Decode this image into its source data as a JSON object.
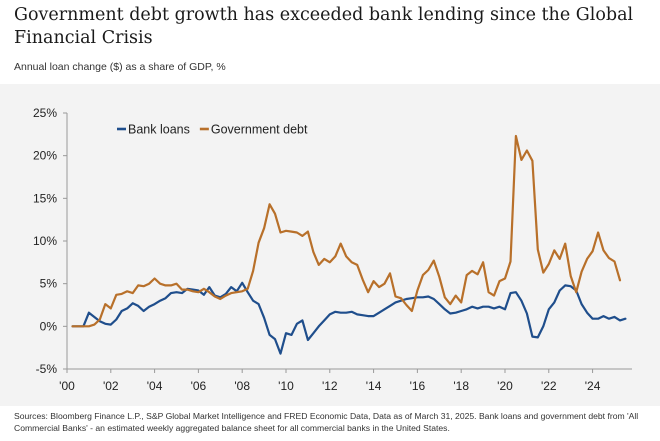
{
  "header": {
    "title": "Government debt growth has exceeded bank lending since the Global Financial Crisis",
    "subtitle": "Annual loan change ($) as a share of GDP, %"
  },
  "footer": {
    "source": "Sources: Bloomberg Finance L.P., S&P Global Market Intelligence and FRED Economic Data, Data as of March 31, 2025. Bank loans and government debt from 'All Commercial Banks' - an estimated weekly aggregated balance sheet for all commercial banks in the United States."
  },
  "chart_data": {
    "type": "line",
    "title": "Government debt growth has exceeded bank lending since the Global Financial Crisis",
    "subtitle": "Annual loan change ($) as a share of GDP, %",
    "xlabel": "",
    "ylabel": "",
    "xlim": [
      2000,
      2025.8
    ],
    "ylim": [
      -5,
      25
    ],
    "x_ticks": [
      2000,
      2002,
      2004,
      2006,
      2008,
      2010,
      2012,
      2014,
      2016,
      2018,
      2020,
      2022,
      2024
    ],
    "x_tick_labels": [
      "'00",
      "'02",
      "'04",
      "'06",
      "'08",
      "'10",
      "'12",
      "'14",
      "'16",
      "'18",
      "'20",
      "'22",
      "'24"
    ],
    "y_ticks": [
      -5,
      0,
      5,
      10,
      15,
      20,
      25
    ],
    "y_tick_labels": [
      "-5%",
      "0%",
      "5%",
      "10%",
      "15%",
      "20%",
      "25%"
    ],
    "grid": false,
    "legend_position": "top-left",
    "series": [
      {
        "name": "Bank loans",
        "color": "#1f4e8c",
        "points": [
          [
            2000.25,
            0
          ],
          [
            2000.75,
            0
          ],
          [
            2001.0,
            1.6
          ],
          [
            2001.5,
            0.6
          ],
          [
            2001.75,
            0.3
          ],
          [
            2002.0,
            0.2
          ],
          [
            2002.25,
            0.8
          ],
          [
            2002.5,
            1.8
          ],
          [
            2002.75,
            2.1
          ],
          [
            2003.0,
            2.7
          ],
          [
            2003.25,
            2.4
          ],
          [
            2003.5,
            1.8
          ],
          [
            2003.75,
            2.3
          ],
          [
            2004.0,
            2.6
          ],
          [
            2004.25,
            3.0
          ],
          [
            2004.5,
            3.3
          ],
          [
            2004.75,
            3.9
          ],
          [
            2005.0,
            4.0
          ],
          [
            2005.25,
            3.9
          ],
          [
            2005.5,
            4.4
          ],
          [
            2005.75,
            4.3
          ],
          [
            2006.0,
            4.2
          ],
          [
            2006.25,
            3.7
          ],
          [
            2006.5,
            4.6
          ],
          [
            2006.75,
            3.6
          ],
          [
            2007.0,
            3.4
          ],
          [
            2007.25,
            3.8
          ],
          [
            2007.5,
            4.6
          ],
          [
            2007.75,
            4.1
          ],
          [
            2008.0,
            5.1
          ],
          [
            2008.25,
            4.0
          ],
          [
            2008.5,
            3.0
          ],
          [
            2008.75,
            2.6
          ],
          [
            2009.0,
            1.0
          ],
          [
            2009.25,
            -1.0
          ],
          [
            2009.5,
            -1.5
          ],
          [
            2009.75,
            -3.2
          ],
          [
            2010.0,
            -0.8
          ],
          [
            2010.25,
            -1.0
          ],
          [
            2010.5,
            0.3
          ],
          [
            2010.75,
            0.7
          ],
          [
            2011.0,
            -1.6
          ],
          [
            2011.25,
            -0.8
          ],
          [
            2011.5,
            0.0
          ],
          [
            2011.75,
            0.7
          ],
          [
            2012.0,
            1.4
          ],
          [
            2012.25,
            1.7
          ],
          [
            2012.5,
            1.6
          ],
          [
            2012.75,
            1.6
          ],
          [
            2013.0,
            1.7
          ],
          [
            2013.25,
            1.4
          ],
          [
            2013.5,
            1.3
          ],
          [
            2013.75,
            1.2
          ],
          [
            2014.0,
            1.2
          ],
          [
            2014.25,
            1.6
          ],
          [
            2014.5,
            2.0
          ],
          [
            2014.75,
            2.4
          ],
          [
            2015.0,
            2.8
          ],
          [
            2015.25,
            3.0
          ],
          [
            2015.5,
            3.2
          ],
          [
            2015.75,
            3.3
          ],
          [
            2016.0,
            3.4
          ],
          [
            2016.25,
            3.4
          ],
          [
            2016.5,
            3.5
          ],
          [
            2016.75,
            3.2
          ],
          [
            2017.0,
            2.6
          ],
          [
            2017.25,
            2.0
          ],
          [
            2017.5,
            1.5
          ],
          [
            2017.75,
            1.6
          ],
          [
            2018.0,
            1.8
          ],
          [
            2018.25,
            2.0
          ],
          [
            2018.5,
            2.3
          ],
          [
            2018.75,
            2.1
          ],
          [
            2019.0,
            2.3
          ],
          [
            2019.25,
            2.3
          ],
          [
            2019.5,
            2.1
          ],
          [
            2019.75,
            2.3
          ],
          [
            2020.0,
            2.0
          ],
          [
            2020.25,
            3.9
          ],
          [
            2020.5,
            4.0
          ],
          [
            2020.75,
            3.0
          ],
          [
            2021.0,
            1.5
          ],
          [
            2021.25,
            -1.2
          ],
          [
            2021.5,
            -1.3
          ],
          [
            2021.75,
            0.0
          ],
          [
            2022.0,
            2.0
          ],
          [
            2022.25,
            2.8
          ],
          [
            2022.5,
            4.2
          ],
          [
            2022.75,
            4.8
          ],
          [
            2023.0,
            4.7
          ],
          [
            2023.25,
            4.2
          ],
          [
            2023.5,
            2.6
          ],
          [
            2023.75,
            1.6
          ],
          [
            2024.0,
            0.9
          ],
          [
            2024.25,
            0.9
          ],
          [
            2024.5,
            1.2
          ],
          [
            2024.75,
            0.9
          ],
          [
            2025.0,
            1.1
          ],
          [
            2025.25,
            0.7
          ],
          [
            2025.5,
            0.9
          ]
        ]
      },
      {
        "name": "Government debt",
        "color": "#b8702a",
        "points": [
          [
            2000.25,
            0
          ],
          [
            2000.75,
            0
          ],
          [
            2001.0,
            0
          ],
          [
            2001.25,
            0.2
          ],
          [
            2001.5,
            0.8
          ],
          [
            2001.75,
            2.6
          ],
          [
            2002.0,
            2.1
          ],
          [
            2002.25,
            3.7
          ],
          [
            2002.5,
            3.8
          ],
          [
            2002.75,
            4.1
          ],
          [
            2003.0,
            3.9
          ],
          [
            2003.25,
            4.8
          ],
          [
            2003.5,
            4.7
          ],
          [
            2003.75,
            5.0
          ],
          [
            2004.0,
            5.6
          ],
          [
            2004.25,
            5.0
          ],
          [
            2004.5,
            4.8
          ],
          [
            2004.75,
            4.8
          ],
          [
            2005.0,
            5.0
          ],
          [
            2005.25,
            4.3
          ],
          [
            2005.5,
            4.3
          ],
          [
            2005.75,
            4.1
          ],
          [
            2006.0,
            4.0
          ],
          [
            2006.25,
            4.4
          ],
          [
            2006.5,
            4.0
          ],
          [
            2006.75,
            3.5
          ],
          [
            2007.0,
            3.2
          ],
          [
            2007.25,
            3.6
          ],
          [
            2007.5,
            3.9
          ],
          [
            2007.75,
            4.0
          ],
          [
            2008.0,
            4.1
          ],
          [
            2008.25,
            4.4
          ],
          [
            2008.5,
            6.5
          ],
          [
            2008.75,
            9.8
          ],
          [
            2009.0,
            11.5
          ],
          [
            2009.25,
            14.3
          ],
          [
            2009.5,
            13.2
          ],
          [
            2009.75,
            11.0
          ],
          [
            2010.0,
            11.2
          ],
          [
            2010.25,
            11.1
          ],
          [
            2010.5,
            11.0
          ],
          [
            2010.75,
            10.6
          ],
          [
            2011.0,
            11.1
          ],
          [
            2011.25,
            8.7
          ],
          [
            2011.5,
            7.2
          ],
          [
            2011.75,
            7.9
          ],
          [
            2012.0,
            7.5
          ],
          [
            2012.25,
            8.2
          ],
          [
            2012.5,
            9.7
          ],
          [
            2012.75,
            8.2
          ],
          [
            2013.0,
            7.5
          ],
          [
            2013.25,
            7.2
          ],
          [
            2013.5,
            5.5
          ],
          [
            2013.75,
            4.0
          ],
          [
            2014.0,
            5.3
          ],
          [
            2014.25,
            4.6
          ],
          [
            2014.5,
            5.0
          ],
          [
            2014.75,
            6.2
          ],
          [
            2015.0,
            3.5
          ],
          [
            2015.25,
            3.3
          ],
          [
            2015.5,
            2.5
          ],
          [
            2015.75,
            1.8
          ],
          [
            2016.0,
            4.2
          ],
          [
            2016.25,
            6.0
          ],
          [
            2016.5,
            6.6
          ],
          [
            2016.75,
            7.7
          ],
          [
            2017.0,
            5.8
          ],
          [
            2017.25,
            3.4
          ],
          [
            2017.5,
            2.6
          ],
          [
            2017.75,
            3.6
          ],
          [
            2018.0,
            2.8
          ],
          [
            2018.25,
            6.0
          ],
          [
            2018.5,
            6.5
          ],
          [
            2018.75,
            6.1
          ],
          [
            2019.0,
            7.5
          ],
          [
            2019.25,
            4.0
          ],
          [
            2019.5,
            3.6
          ],
          [
            2019.75,
            5.3
          ],
          [
            2020.0,
            5.6
          ],
          [
            2020.25,
            7.6
          ],
          [
            2020.5,
            22.3
          ],
          [
            2020.75,
            19.5
          ],
          [
            2021.0,
            20.6
          ],
          [
            2021.25,
            19.4
          ],
          [
            2021.5,
            9.0
          ],
          [
            2021.75,
            6.3
          ],
          [
            2022.0,
            7.3
          ],
          [
            2022.25,
            8.9
          ],
          [
            2022.5,
            7.9
          ],
          [
            2022.75,
            9.7
          ],
          [
            2023.0,
            5.9
          ],
          [
            2023.25,
            4.0
          ],
          [
            2023.5,
            6.4
          ],
          [
            2023.75,
            7.9
          ],
          [
            2024.0,
            8.8
          ],
          [
            2024.25,
            11.0
          ],
          [
            2024.5,
            8.9
          ],
          [
            2024.75,
            8.0
          ],
          [
            2025.0,
            7.6
          ],
          [
            2025.25,
            5.4
          ]
        ]
      }
    ]
  }
}
